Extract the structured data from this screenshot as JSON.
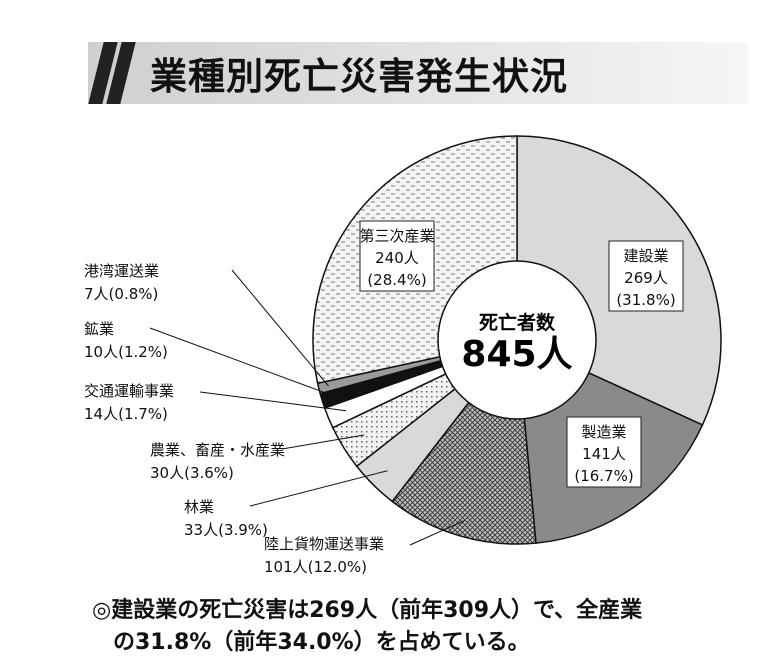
{
  "header": {
    "title": "業種別死亡災害発生状況"
  },
  "chart_data": {
    "type": "pie",
    "title": "業種別死亡災害発生状況",
    "center_label": "死亡者数",
    "center_value": "845人",
    "total": 845,
    "slices": [
      {
        "label": "建設業",
        "count_text": "269人",
        "pct_text": "(31.8%)",
        "value": 269,
        "percent": 31.8,
        "fill": "light-gray"
      },
      {
        "label": "製造業",
        "count_text": "141人",
        "pct_text": "(16.7%)",
        "value": 141,
        "percent": 16.7,
        "fill": "dark-gray"
      },
      {
        "label": "陸上貨物運送事業",
        "count_text": "101人",
        "pct_text": "(12.0%)",
        "value": 101,
        "percent": 12.0,
        "fill": "crosshatch"
      },
      {
        "label": "林業",
        "count_text": "33人",
        "pct_text": "(3.9%)",
        "value": 33,
        "percent": 3.9,
        "fill": "light-gray"
      },
      {
        "label": "農業、畜産・水産業",
        "count_text": "30人",
        "pct_text": "(3.6%)",
        "value": 30,
        "percent": 3.6,
        "fill": "dots"
      },
      {
        "label": "交通運輸事業",
        "count_text": "14人",
        "pct_text": "(1.7%)",
        "value": 14,
        "percent": 1.7,
        "fill": "white"
      },
      {
        "label": "鉱業",
        "count_text": "10人",
        "pct_text": "(1.2%)",
        "value": 10,
        "percent": 1.2,
        "fill": "black"
      },
      {
        "label": "港湾運送業",
        "count_text": "7人",
        "pct_text": "(0.8%)",
        "value": 7,
        "percent": 0.8,
        "fill": "medium-gray"
      },
      {
        "label": "第三次産業",
        "count_text": "240人",
        "pct_text": "(28.4%)",
        "value": 240,
        "percent": 28.4,
        "fill": "dashes"
      }
    ],
    "colors": {
      "light": "#d9d9d9",
      "dark": "#8a8a8a",
      "medium": "#9a9a9a",
      "black": "#111111"
    }
  },
  "footnote": {
    "line1": "◎建設業の死亡災害は269人（前年309人）で、全産業",
    "line2": "の31.8%（前年34.0%）を占めている。"
  }
}
